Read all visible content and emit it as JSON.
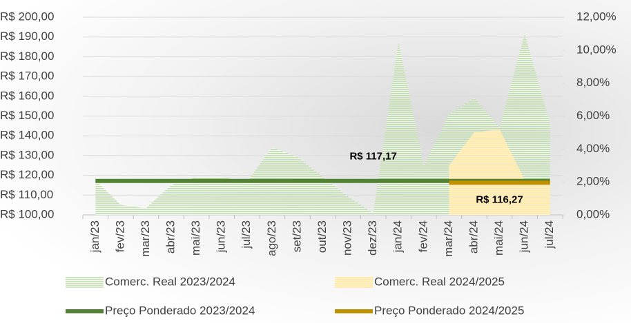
{
  "chart_data": {
    "type": "area-line",
    "categories": [
      "jan/23",
      "fev/23",
      "mar/23",
      "abr/23",
      "mai/23",
      "jun/23",
      "jul/23",
      "ago/23",
      "set/23",
      "out/23",
      "nov/23",
      "dez/23",
      "jan/24",
      "fev/24",
      "mar/24",
      "abr/24",
      "mai/24",
      "jun/24",
      "jul/24"
    ],
    "series": [
      {
        "name": "Comerc. Real 2023/2024",
        "type": "area",
        "axis": "y2",
        "color": "#a9d18e",
        "values": [
          2.1,
          0.6,
          0.4,
          1.8,
          2.3,
          2.3,
          2.0,
          4.1,
          3.5,
          2.3,
          1.1,
          0.1,
          10.5,
          3.0,
          6.1,
          7.1,
          5.3,
          11.0,
          5.5
        ]
      },
      {
        "name": "Comerc. Real 2024/2025",
        "type": "area",
        "axis": "y2",
        "color": "#ffe699",
        "values": [
          null,
          null,
          null,
          null,
          null,
          null,
          null,
          null,
          null,
          null,
          null,
          null,
          null,
          null,
          3.0,
          5.0,
          5.2,
          2.1,
          2.1
        ]
      },
      {
        "name": "Preço Ponderado 2023/2024",
        "type": "line",
        "color": "#548235",
        "values": [
          117.17,
          117.17,
          117.17,
          117.17,
          117.17,
          117.17,
          117.17,
          117.17,
          117.17,
          117.17,
          117.17,
          117.17,
          117.17,
          117.17,
          117.17,
          117.17,
          117.17,
          117.17,
          117.17
        ],
        "value_labels": [
          null,
          null,
          null,
          null,
          null,
          null,
          null,
          null,
          null,
          null,
          null,
          "R$ 117,17",
          null,
          null,
          null,
          null,
          null,
          null,
          null
        ]
      },
      {
        "name": "Preço Ponderado 2024/2025",
        "type": "line",
        "color": "#bf9000",
        "values": [
          null,
          null,
          null,
          null,
          null,
          null,
          null,
          null,
          null,
          null,
          null,
          null,
          null,
          null,
          116.27,
          116.27,
          116.27,
          116.27,
          116.27
        ],
        "value_labels": [
          null,
          null,
          null,
          null,
          null,
          null,
          null,
          null,
          null,
          null,
          null,
          null,
          null,
          null,
          null,
          null,
          "R$ 116,27",
          null,
          null
        ]
      }
    ],
    "ylim": [
      100,
      200
    ],
    "yticks": [
      {
        "value": 100,
        "label": "R$ 100,00"
      },
      {
        "value": 110,
        "label": "R$ 110,00"
      },
      {
        "value": 120,
        "label": "R$ 120,00"
      },
      {
        "value": 130,
        "label": "R$ 130,00"
      },
      {
        "value": 140,
        "label": "R$ 140,00"
      },
      {
        "value": 150,
        "label": "R$ 150,00"
      },
      {
        "value": 160,
        "label": "R$ 160,00"
      },
      {
        "value": 170,
        "label": "R$ 170,00"
      },
      {
        "value": 180,
        "label": "R$ 180,00"
      },
      {
        "value": 190,
        "label": "R$ 190,00"
      },
      {
        "value": 200,
        "label": "R$ 200,00"
      }
    ],
    "y2lim": [
      0,
      12
    ],
    "y2ticks": [
      {
        "value": 0,
        "label": "0,00%"
      },
      {
        "value": 2,
        "label": "2,00%"
      },
      {
        "value": 4,
        "label": "4,00%"
      },
      {
        "value": 6,
        "label": "6,00%"
      },
      {
        "value": 8,
        "label": "8,00%"
      },
      {
        "value": 10,
        "label": "10,00%"
      },
      {
        "value": 12,
        "label": "12,00%"
      }
    ],
    "grid": true
  }
}
